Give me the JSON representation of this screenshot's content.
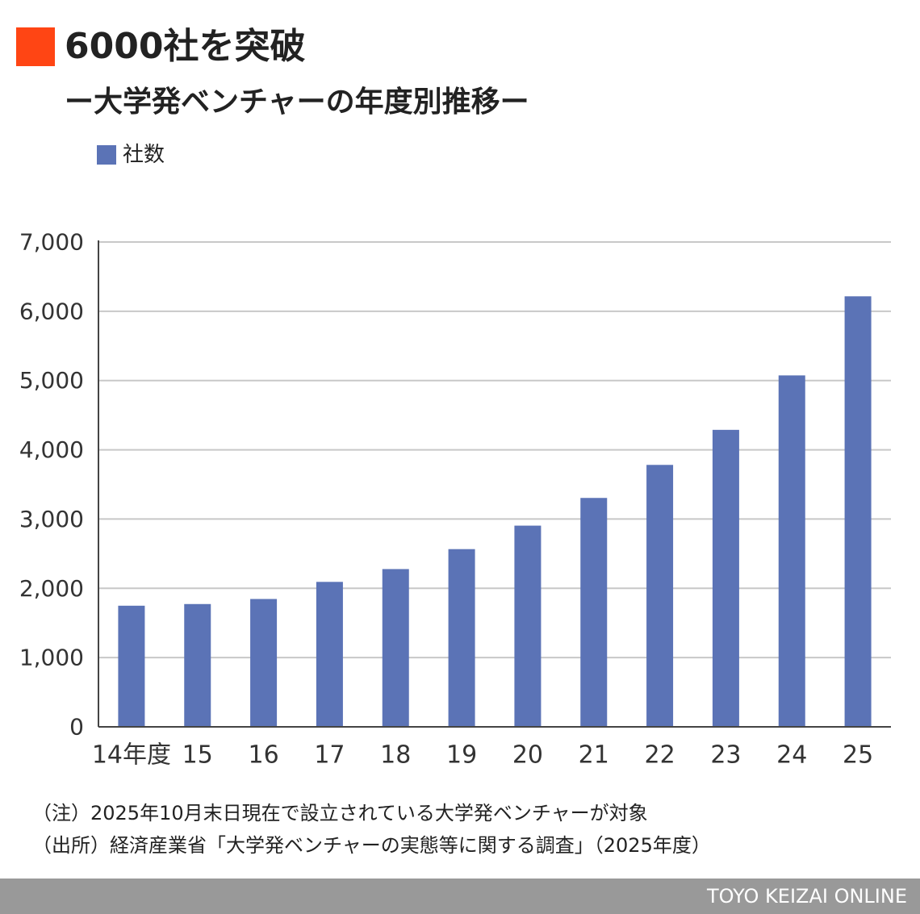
{
  "colors": {
    "accent": "#ff4514",
    "bar": "#5b73b6",
    "grid": "#c8c8c8",
    "axis": "#444444",
    "footer": "#999999"
  },
  "notes": {
    "note": "（注）2025年10月末日現在で設立されている大学発ベンチャーが対象",
    "source": "（出所）経済産業省「大学発ベンチャーの実態等に関する調査」（2025年度）"
  },
  "footer": {
    "brand": "TOYO KEIZAI ONLINE"
  },
  "chart_data": {
    "type": "bar",
    "title": "6000社を突破",
    "subtitle": "ー大学発ベンチャーの年度別推移ー",
    "categories": [
      "14年度",
      "15",
      "16",
      "17",
      "18",
      "19",
      "20",
      "21",
      "22",
      "23",
      "24",
      "25"
    ],
    "series": [
      {
        "name": "社数",
        "values": [
          1749,
          1773,
          1846,
          2093,
          2278,
          2566,
          2905,
          3305,
          3782,
          4288,
          5074,
          6216
        ]
      }
    ],
    "ylim": [
      0,
      7000
    ],
    "yticks": [
      0,
      1000,
      2000,
      3000,
      4000,
      5000,
      6000,
      7000
    ],
    "ytick_labels": [
      "0",
      "1,000",
      "2,000",
      "3,000",
      "4,000",
      "5,000",
      "6,000",
      "7,000"
    ],
    "xlabel": "",
    "ylabel": "",
    "grid": true,
    "legend": "top-left"
  }
}
